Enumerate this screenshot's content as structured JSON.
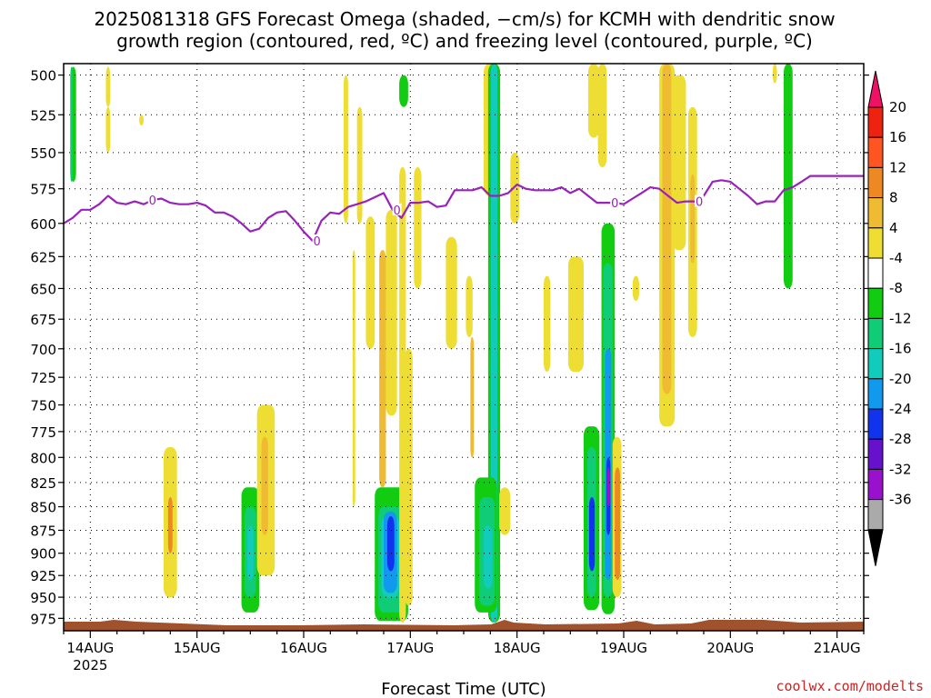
{
  "title_line1": "2025081318 GFS Forecast Omega (shaded, −cm/s) for KCMH with dendritic snow",
  "title_line2": "growth region (contoured, red, ºC) and freezing level (contoured, purple, ºC)",
  "credit": "coolwx.com/modelts",
  "chart_data": {
    "type": "heatmap",
    "xlabel": "Forecast Time (UTC)",
    "x_ticks": [
      "14AUG",
      "15AUG",
      "16AUG",
      "17AUG",
      "18AUG",
      "19AUG",
      "20AUG",
      "21AUG"
    ],
    "x_tick_year": "2025",
    "xlim_hours": [
      -6,
      174
    ],
    "y_ticks": [
      500,
      525,
      550,
      575,
      600,
      625,
      650,
      675,
      700,
      725,
      750,
      775,
      800,
      825,
      850,
      875,
      900,
      925,
      950,
      975
    ],
    "ylim_hpa": [
      493,
      990
    ],
    "y_scale": "log",
    "grid": true,
    "colorbar": {
      "labels": [
        "20",
        "16",
        "12",
        "8",
        "4",
        "-4",
        "-8",
        "-12",
        "-16",
        "-20",
        "-24",
        "-28",
        "-32",
        "-36"
      ],
      "bins": [
        {
          "color": "#ee1166"
        },
        {
          "color": "#ee2211"
        },
        {
          "color": "#ff5522"
        },
        {
          "color": "#ee8822"
        },
        {
          "color": "#eebb33"
        },
        {
          "color": "#eedd33"
        },
        {
          "color": "#ffffff"
        },
        {
          "color": "#11cc11"
        },
        {
          "color": "#11cc77"
        },
        {
          "color": "#11ccbb"
        },
        {
          "color": "#1199ee"
        },
        {
          "color": "#1133ee"
        },
        {
          "color": "#6611cc"
        },
        {
          "color": "#9911cc"
        },
        {
          "color": "#aaaaaa"
        },
        {
          "color": "#000000"
        }
      ]
    },
    "freezing_level": {
      "label": "0",
      "color": "#9922bb",
      "hours": [
        -6,
        -4,
        -2,
        0,
        2,
        4,
        6,
        8,
        10,
        12,
        14,
        16,
        18,
        20,
        22,
        24,
        26,
        28,
        30,
        32,
        34,
        36,
        38,
        40,
        42,
        44,
        46,
        48,
        50,
        52,
        54,
        56,
        58,
        60,
        62,
        64,
        66,
        68,
        70,
        72,
        74,
        76,
        78,
        80,
        82,
        84,
        86,
        88,
        90,
        92,
        94,
        96,
        98,
        100,
        102,
        104,
        106,
        108,
        110,
        112,
        114,
        116,
        118,
        120,
        122,
        124,
        126,
        128,
        130,
        132,
        134,
        136,
        138,
        140,
        142,
        144,
        146,
        148,
        150,
        152,
        154,
        156,
        158,
        160,
        162,
        164,
        166,
        168,
        170,
        172,
        174
      ],
      "hpa": [
        600,
        596,
        590,
        590,
        586,
        580,
        585,
        586,
        584,
        586,
        583,
        582,
        585,
        586,
        586,
        585,
        587,
        592,
        592,
        595,
        600,
        606,
        604,
        596,
        592,
        591,
        598,
        606,
        613,
        598,
        592,
        593,
        588,
        586,
        584,
        581,
        578,
        590,
        596,
        585,
        585,
        584,
        588,
        587,
        576,
        576,
        576,
        574,
        580,
        580,
        578,
        572,
        575,
        576,
        576,
        576,
        574,
        578,
        575,
        580,
        585,
        585,
        585,
        586,
        582,
        578,
        574,
        575,
        580,
        585,
        584,
        584,
        580,
        570,
        569,
        570,
        575,
        580,
        586,
        584,
        584,
        576,
        574,
        570,
        566,
        566,
        566,
        566,
        566,
        566,
        566
      ]
    },
    "omega_cells": [
      {
        "t0": -4.5,
        "t1": -3.2,
        "p0": 495,
        "p1": 570,
        "color": "#11cc11"
      },
      {
        "t0": -4.5,
        "t1": -4.0,
        "p0": 495,
        "p1": 570,
        "color": "#11cc77"
      },
      {
        "t0": 3.5,
        "t1": 4.5,
        "p0": 495,
        "p1": 520,
        "color": "#eedd33"
      },
      {
        "t0": 3.5,
        "t1": 4.5,
        "p0": 520,
        "p1": 550,
        "color": "#eedd33"
      },
      {
        "t0": 11.0,
        "t1": 12.0,
        "p0": 525,
        "p1": 532,
        "color": "#eedd33"
      },
      {
        "t0": 16.5,
        "t1": 19.5,
        "p0": 790,
        "p1": 950,
        "color": "#eedd33"
      },
      {
        "t0": 17.5,
        "t1": 18.5,
        "p0": 840,
        "p1": 900,
        "color": "#ee8822"
      },
      {
        "t0": 34.0,
        "t1": 38.0,
        "p0": 830,
        "p1": 968,
        "color": "#11cc11"
      },
      {
        "t0": 34.7,
        "t1": 37.3,
        "p0": 850,
        "p1": 950,
        "color": "#11cc77"
      },
      {
        "t0": 35.3,
        "t1": 36.7,
        "p0": 870,
        "p1": 930,
        "color": "#11ccbb"
      },
      {
        "t0": 37.5,
        "t1": 41.5,
        "p0": 750,
        "p1": 925,
        "color": "#eedd33"
      },
      {
        "t0": 38.5,
        "t1": 40.0,
        "p0": 780,
        "p1": 880,
        "color": "#eebb33"
      },
      {
        "t0": 57.0,
        "t1": 58.0,
        "p0": 500,
        "p1": 600,
        "color": "#eedd33"
      },
      {
        "t0": 62.0,
        "t1": 64.0,
        "p0": 595,
        "p1": 700,
        "color": "#eedd33"
      },
      {
        "t0": 60.0,
        "t1": 61.2,
        "p0": 520,
        "p1": 600,
        "color": "#eedd33"
      },
      {
        "t0": 59.0,
        "t1": 59.6,
        "p0": 620,
        "p1": 850,
        "color": "#eedd33"
      },
      {
        "t0": 65.0,
        "t1": 66.5,
        "p0": 620,
        "p1": 830,
        "color": "#eebb33"
      },
      {
        "t0": 66.5,
        "t1": 69.0,
        "p0": 590,
        "p1": 760,
        "color": "#eedd33"
      },
      {
        "t0": 64.0,
        "t1": 71.5,
        "p0": 830,
        "p1": 978,
        "color": "#11cc11"
      },
      {
        "t0": 64.8,
        "t1": 70.5,
        "p0": 850,
        "p1": 968,
        "color": "#11cc77"
      },
      {
        "t0": 65.5,
        "t1": 69.5,
        "p0": 860,
        "p1": 950,
        "color": "#11ccbb"
      },
      {
        "t0": 66.0,
        "t1": 69.0,
        "p0": 855,
        "p1": 945,
        "color": "#1199ee"
      },
      {
        "t0": 66.8,
        "t1": 68.4,
        "p0": 860,
        "p1": 920,
        "color": "#1133ee"
      },
      {
        "t0": 69.5,
        "t1": 71.5,
        "p0": 500,
        "p1": 520,
        "color": "#11cc11"
      },
      {
        "t0": 69.5,
        "t1": 71.0,
        "p0": 560,
        "p1": 980,
        "color": "#eedd33"
      },
      {
        "t0": 70.8,
        "t1": 72.5,
        "p0": 700,
        "p1": 960,
        "color": "#eedd33"
      },
      {
        "t0": 72.8,
        "t1": 74.5,
        "p0": 560,
        "p1": 650,
        "color": "#eedd33"
      },
      {
        "t0": 80.0,
        "t1": 82.5,
        "p0": 610,
        "p1": 700,
        "color": "#eedd33"
      },
      {
        "t0": 84.5,
        "t1": 86.0,
        "p0": 640,
        "p1": 690,
        "color": "#eedd33"
      },
      {
        "t0": 85.5,
        "t1": 86.3,
        "p0": 690,
        "p1": 800,
        "color": "#eebb33"
      },
      {
        "t0": 88.5,
        "t1": 90.8,
        "p0": 493,
        "p1": 580,
        "color": "#eedd33"
      },
      {
        "t0": 89.5,
        "t1": 92.2,
        "p0": 493,
        "p1": 980,
        "color": "#11cc11"
      },
      {
        "t0": 90.1,
        "t1": 91.6,
        "p0": 493,
        "p1": 980,
        "color": "#11ccbb"
      },
      {
        "t0": 86.5,
        "t1": 91.5,
        "p0": 820,
        "p1": 968,
        "color": "#11cc11"
      },
      {
        "t0": 87.5,
        "t1": 91.0,
        "p0": 840,
        "p1": 960,
        "color": "#11cc77"
      },
      {
        "t0": 88.5,
        "t1": 90.5,
        "p0": 870,
        "p1": 940,
        "color": "#11ccbb"
      },
      {
        "t0": 92.0,
        "t1": 94.5,
        "p0": 830,
        "p1": 880,
        "color": "#eedd33"
      },
      {
        "t0": 94.5,
        "t1": 96.5,
        "p0": 550,
        "p1": 600,
        "color": "#eedd33"
      },
      {
        "t0": 102.0,
        "t1": 103.5,
        "p0": 640,
        "p1": 720,
        "color": "#eedd33"
      },
      {
        "t0": 107.5,
        "t1": 111.0,
        "p0": 625,
        "p1": 720,
        "color": "#eedd33"
      },
      {
        "t0": 112.0,
        "t1": 114.5,
        "p0": 493,
        "p1": 540,
        "color": "#eedd33"
      },
      {
        "t0": 114.2,
        "t1": 116.2,
        "p0": 493,
        "p1": 560,
        "color": "#eedd33"
      },
      {
        "t0": 111.0,
        "t1": 114.5,
        "p0": 770,
        "p1": 965,
        "color": "#11cc11"
      },
      {
        "t0": 111.8,
        "t1": 113.8,
        "p0": 790,
        "p1": 950,
        "color": "#11cc77"
      },
      {
        "t0": 112.2,
        "t1": 113.5,
        "p0": 840,
        "p1": 920,
        "color": "#1133ee"
      },
      {
        "t0": 115.0,
        "t1": 118.0,
        "p0": 600,
        "p1": 970,
        "color": "#11cc11"
      },
      {
        "t0": 115.4,
        "t1": 117.5,
        "p0": 630,
        "p1": 950,
        "color": "#11cc77"
      },
      {
        "t0": 115.8,
        "t1": 117.2,
        "p0": 700,
        "p1": 930,
        "color": "#1199ee"
      },
      {
        "t0": 116.1,
        "t1": 117.0,
        "p0": 800,
        "p1": 880,
        "color": "#1133ee"
      },
      {
        "t0": 116.2,
        "t1": 116.9,
        "p0": 810,
        "p1": 850,
        "color": "#9911cc"
      },
      {
        "t0": 117.5,
        "t1": 119.5,
        "p0": 780,
        "p1": 950,
        "color": "#eedd33"
      },
      {
        "t0": 118.0,
        "t1": 119.2,
        "p0": 810,
        "p1": 930,
        "color": "#ee8822"
      },
      {
        "t0": 122.0,
        "t1": 123.5,
        "p0": 640,
        "p1": 660,
        "color": "#eedd33"
      },
      {
        "t0": 128.0,
        "t1": 131.5,
        "p0": 493,
        "p1": 770,
        "color": "#eedd33"
      },
      {
        "t0": 128.7,
        "t1": 130.7,
        "p0": 493,
        "p1": 740,
        "color": "#eebb33"
      },
      {
        "t0": 131.0,
        "t1": 134.0,
        "p0": 500,
        "p1": 620,
        "color": "#eedd33"
      },
      {
        "t0": 134.5,
        "t1": 136.5,
        "p0": 520,
        "p1": 690,
        "color": "#eedd33"
      },
      {
        "t0": 135.0,
        "t1": 136.0,
        "p0": 565,
        "p1": 630,
        "color": "#eebb33"
      },
      {
        "t0": 153.5,
        "t1": 154.5,
        "p0": 493,
        "p1": 505,
        "color": "#eedd33"
      },
      {
        "t0": 156.0,
        "t1": 158.0,
        "p0": 493,
        "p1": 650,
        "color": "#11cc11"
      }
    ],
    "terrain_color": "#a0522d"
  }
}
